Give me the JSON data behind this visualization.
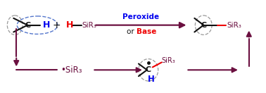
{
  "bg_color": "#ffffff",
  "arrow_color": "#6b1040",
  "text_color_black": "#111111",
  "text_color_blue": "#0000ee",
  "text_color_red": "#ee0000",
  "text_color_dark": "#6b1040",
  "dashed_ellipse_blue": "#5577cc",
  "dashed_circle_gray": "#999999",
  "peroxide_label": "Peroxide",
  "or_label": "or ",
  "base_label": "Base",
  "sir3_label": "SiR₃",
  "plus_label": "+",
  "C_label": "C",
  "H_blue": "H",
  "H_red": "H",
  "H_bottom": "H",
  "dot_label": "•SiR₃"
}
